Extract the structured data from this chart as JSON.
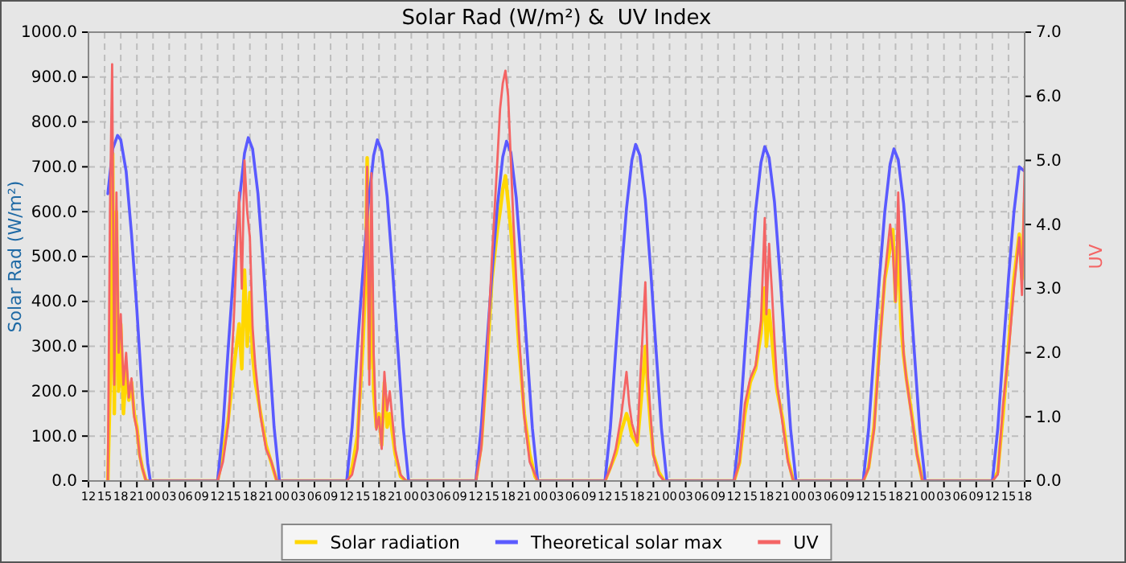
{
  "chart_data": {
    "type": "line",
    "title": "Solar Rad (W/m²) &  UV Index",
    "ylabel": "Solar Rad (W/m²)",
    "y2label": "UV",
    "xlim": [
      12,
      186
    ],
    "xticks": [
      {
        "value": 12,
        "label": "12"
      },
      {
        "value": 15,
        "label": "15"
      },
      {
        "value": 18,
        "label": "18"
      },
      {
        "value": 21,
        "label": "21"
      },
      {
        "value": 24,
        "label": "00"
      },
      {
        "value": 27,
        "label": "03"
      },
      {
        "value": 30,
        "label": "06"
      },
      {
        "value": 33,
        "label": "09"
      },
      {
        "value": 36,
        "label": "12"
      },
      {
        "value": 39,
        "label": "15"
      },
      {
        "value": 42,
        "label": "18"
      },
      {
        "value": 45,
        "label": "21"
      },
      {
        "value": 48,
        "label": "00"
      },
      {
        "value": 51,
        "label": "03"
      },
      {
        "value": 54,
        "label": "06"
      },
      {
        "value": 57,
        "label": "09"
      },
      {
        "value": 60,
        "label": "12"
      },
      {
        "value": 63,
        "label": "15"
      },
      {
        "value": 66,
        "label": "18"
      },
      {
        "value": 69,
        "label": "21"
      },
      {
        "value": 72,
        "label": "00"
      },
      {
        "value": 75,
        "label": "03"
      },
      {
        "value": 78,
        "label": "06"
      },
      {
        "value": 81,
        "label": "09"
      },
      {
        "value": 84,
        "label": "12"
      },
      {
        "value": 87,
        "label": "15"
      },
      {
        "value": 90,
        "label": "18"
      },
      {
        "value": 93,
        "label": "21"
      },
      {
        "value": 96,
        "label": "00"
      },
      {
        "value": 99,
        "label": "03"
      },
      {
        "value": 102,
        "label": "06"
      },
      {
        "value": 105,
        "label": "09"
      },
      {
        "value": 108,
        "label": "12"
      },
      {
        "value": 111,
        "label": "15"
      },
      {
        "value": 114,
        "label": "18"
      },
      {
        "value": 117,
        "label": "21"
      },
      {
        "value": 120,
        "label": "00"
      },
      {
        "value": 123,
        "label": "03"
      },
      {
        "value": 126,
        "label": "06"
      },
      {
        "value": 129,
        "label": "09"
      },
      {
        "value": 132,
        "label": "12"
      },
      {
        "value": 135,
        "label": "15"
      },
      {
        "value": 138,
        "label": "18"
      },
      {
        "value": 141,
        "label": "21"
      },
      {
        "value": 144,
        "label": "00"
      },
      {
        "value": 147,
        "label": "03"
      },
      {
        "value": 150,
        "label": "06"
      },
      {
        "value": 153,
        "label": "09"
      },
      {
        "value": 156,
        "label": "12"
      },
      {
        "value": 159,
        "label": "15"
      },
      {
        "value": 162,
        "label": "18"
      },
      {
        "value": 165,
        "label": "21"
      },
      {
        "value": 168,
        "label": "00"
      },
      {
        "value": 171,
        "label": "03"
      },
      {
        "value": 174,
        "label": "06"
      },
      {
        "value": 177,
        "label": "09"
      },
      {
        "value": 180,
        "label": "12"
      },
      {
        "value": 183,
        "label": "15"
      },
      {
        "value": 186,
        "label": "18"
      }
    ],
    "ylim": [
      0,
      1000
    ],
    "yticks": [
      {
        "value": 0,
        "label": "0.0"
      },
      {
        "value": 100,
        "label": "100.0"
      },
      {
        "value": 200,
        "label": "200.0"
      },
      {
        "value": 300,
        "label": "300.0"
      },
      {
        "value": 400,
        "label": "400.0"
      },
      {
        "value": 500,
        "label": "500.0"
      },
      {
        "value": 600,
        "label": "600.0"
      },
      {
        "value": 700,
        "label": "700.0"
      },
      {
        "value": 800,
        "label": "800.0"
      },
      {
        "value": 900,
        "label": "900.0"
      },
      {
        "value": 1000,
        "label": "1000.0"
      }
    ],
    "y2lim": [
      0,
      7
    ],
    "y2ticks": [
      {
        "value": 0,
        "label": "0.0"
      },
      {
        "value": 1,
        "label": "1.0"
      },
      {
        "value": 2,
        "label": "2.0"
      },
      {
        "value": 3,
        "label": "3.0"
      },
      {
        "value": 4,
        "label": "4.0"
      },
      {
        "value": 5,
        "label": "5.0"
      },
      {
        "value": 6,
        "label": "6.0"
      },
      {
        "value": 7,
        "label": "7.0"
      }
    ],
    "grid": true,
    "legend": "bottom",
    "line_style": "solid",
    "marker": "none",
    "series": [
      {
        "name": "Solar radiation",
        "color": "#ffd700",
        "x": [
          15.6,
          16.2,
          16.5,
          16.8,
          17.2,
          17.6,
          18,
          18.5,
          19,
          19.5,
          20,
          20.5,
          21,
          21.5,
          22,
          22.7,
          36,
          37,
          38,
          39,
          40,
          40.5,
          41,
          41.5,
          42,
          42.5,
          43,
          44,
          45,
          46,
          47,
          60,
          61,
          62,
          63,
          63.5,
          63.8,
          64.2,
          64.6,
          65,
          65.5,
          66,
          66.5,
          67,
          67.5,
          68,
          69,
          70,
          71,
          84,
          85,
          86,
          87,
          88,
          88.5,
          89,
          89.5,
          90,
          90.5,
          91,
          92,
          93,
          94,
          95,
          95.5,
          108,
          109,
          110,
          111,
          112,
          112.5,
          113,
          114,
          114.5,
          115,
          115.5,
          116,
          116.5,
          117,
          118,
          119,
          132,
          133,
          134,
          135,
          136,
          137,
          137.7,
          138,
          138.5,
          139,
          139.5,
          140,
          141,
          142,
          143,
          156,
          157,
          158,
          159,
          160,
          161,
          161.5,
          162,
          162.5,
          163,
          163.5,
          164,
          165,
          166,
          167,
          180,
          181,
          182,
          183,
          184,
          185,
          185.5,
          186
        ],
        "values": [
          0,
          300,
          730,
          150,
          600,
          200,
          350,
          150,
          250,
          180,
          220,
          150,
          120,
          60,
          30,
          0,
          0,
          60,
          140,
          250,
          350,
          250,
          470,
          300,
          420,
          280,
          220,
          150,
          80,
          40,
          0,
          0,
          30,
          100,
          300,
          450,
          720,
          250,
          480,
          200,
          120,
          150,
          80,
          220,
          120,
          150,
          60,
          10,
          0,
          0,
          80,
          250,
          450,
          560,
          600,
          650,
          680,
          620,
          560,
          480,
          300,
          150,
          60,
          10,
          0,
          0,
          30,
          60,
          110,
          150,
          130,
          100,
          80,
          150,
          220,
          300,
          200,
          120,
          60,
          20,
          0,
          0,
          40,
          150,
          220,
          250,
          330,
          430,
          300,
          380,
          320,
          250,
          200,
          140,
          50,
          0,
          0,
          30,
          120,
          300,
          450,
          520,
          560,
          400,
          550,
          350,
          280,
          230,
          150,
          60,
          0,
          0,
          20,
          150,
          300,
          450,
          550,
          450,
          620
        ]
      },
      {
        "name": "Theoretical solar max",
        "color": "#5a5aff",
        "x": [
          15.6,
          16.5,
          17.4,
          18,
          19,
          20,
          21,
          22,
          23,
          23.5,
          36,
          37,
          38,
          39,
          40,
          41,
          41.7,
          42.5,
          43.5,
          44.5,
          45.5,
          46.5,
          47.5,
          60,
          61,
          62,
          63,
          64,
          65,
          65.7,
          66.5,
          67.5,
          68.5,
          69.5,
          70.5,
          71.5,
          84,
          85,
          86,
          87,
          88,
          89,
          89.7,
          90.5,
          91.5,
          92.5,
          93.5,
          94.5,
          95.5,
          108,
          109,
          110,
          111,
          112,
          113,
          113.7,
          114.5,
          115.5,
          116.5,
          117.5,
          118.5,
          119.5,
          132,
          133,
          134,
          135,
          136,
          137,
          137.7,
          138.5,
          139.5,
          140.5,
          141.5,
          142.5,
          143.5,
          156,
          157,
          158,
          159,
          160,
          161,
          161.7,
          162.5,
          163.5,
          164.5,
          165.5,
          166.5,
          167.5,
          180,
          181,
          182,
          183,
          184,
          185,
          186
        ],
        "values": [
          640,
          740,
          770,
          760,
          690,
          550,
          380,
          190,
          40,
          0,
          0,
          120,
          300,
          470,
          620,
          730,
          765,
          740,
          640,
          480,
          300,
          120,
          0,
          0,
          120,
          300,
          465,
          615,
          725,
          760,
          735,
          635,
          475,
          295,
          120,
          0,
          0,
          120,
          295,
          463,
          612,
          722,
          757,
          732,
          632,
          473,
          293,
          118,
          0,
          0,
          118,
          292,
          458,
          607,
          715,
          750,
          725,
          627,
          468,
          290,
          116,
          0,
          0,
          117,
          290,
          455,
          603,
          710,
          745,
          720,
          622,
          465,
          288,
          115,
          0,
          0,
          116,
          288,
          452,
          599,
          706,
          740,
          716,
          618,
          462,
          286,
          114,
          0,
          0,
          116,
          288,
          452,
          598,
          700,
          690
        ]
      },
      {
        "name": "UV",
        "color": "#f46464",
        "axis": "y2",
        "x": [
          15.6,
          16,
          16.4,
          16.8,
          17.2,
          17.6,
          18,
          18.5,
          19,
          19.5,
          20,
          20.5,
          21,
          21.5,
          22,
          22.7,
          36,
          37,
          38,
          39,
          40,
          40.5,
          41,
          41.5,
          42,
          42.5,
          43,
          44,
          45,
          46,
          47,
          60,
          61,
          62,
          63,
          63.5,
          63.8,
          64.2,
          64.6,
          65,
          65.5,
          66,
          66.5,
          67,
          67.5,
          68,
          69,
          70,
          71,
          84,
          85,
          86,
          87,
          88,
          88.5,
          89,
          89.5,
          90,
          90.5,
          91,
          92,
          93,
          94,
          95,
          95.5,
          108,
          109,
          110,
          111,
          112,
          112.5,
          113,
          114,
          114.5,
          115,
          115.5,
          116,
          116.5,
          117,
          118,
          119,
          132,
          133,
          134,
          135,
          136,
          137,
          137.7,
          138,
          138.5,
          139,
          139.5,
          140,
          141,
          142,
          143,
          156,
          157,
          158,
          159,
          160,
          161,
          161.5,
          162,
          162.5,
          163,
          163.5,
          164,
          165,
          166,
          167,
          180,
          181,
          182,
          183,
          184,
          185,
          185.5,
          186
        ],
        "values": [
          0,
          4.2,
          6.5,
          1.5,
          4.5,
          2.0,
          2.6,
          1.5,
          2.0,
          1.3,
          1.6,
          1.0,
          0.8,
          0.4,
          0.2,
          0,
          0,
          0.3,
          0.9,
          2.5,
          4.5,
          3.0,
          5.0,
          4.2,
          3.8,
          2.4,
          1.8,
          1.0,
          0.5,
          0.3,
          0,
          0,
          0.1,
          0.5,
          2.5,
          3.5,
          4.9,
          1.5,
          4.8,
          2.0,
          0.8,
          1.0,
          0.5,
          1.7,
          1.1,
          1.4,
          0.5,
          0.1,
          0,
          0,
          0.5,
          1.8,
          3.5,
          5.0,
          5.8,
          6.2,
          6.4,
          6.0,
          5.0,
          4.0,
          2.3,
          1.0,
          0.3,
          0.1,
          0,
          0,
          0.2,
          0.5,
          1.0,
          1.7,
          1.2,
          0.9,
          0.6,
          1.5,
          2.3,
          3.1,
          1.6,
          1.0,
          0.4,
          0.1,
          0,
          0,
          0.3,
          1.2,
          1.6,
          1.8,
          2.5,
          4.1,
          2.6,
          3.7,
          3.0,
          2.2,
          1.5,
          0.9,
          0.3,
          0,
          0,
          0.2,
          0.8,
          2.0,
          3.2,
          4.0,
          3.6,
          2.8,
          4.5,
          3.0,
          2.0,
          1.6,
          1.0,
          0.4,
          0,
          0,
          0.1,
          1.2,
          2.0,
          3.0,
          3.8,
          2.9,
          4.9
        ]
      }
    ]
  }
}
